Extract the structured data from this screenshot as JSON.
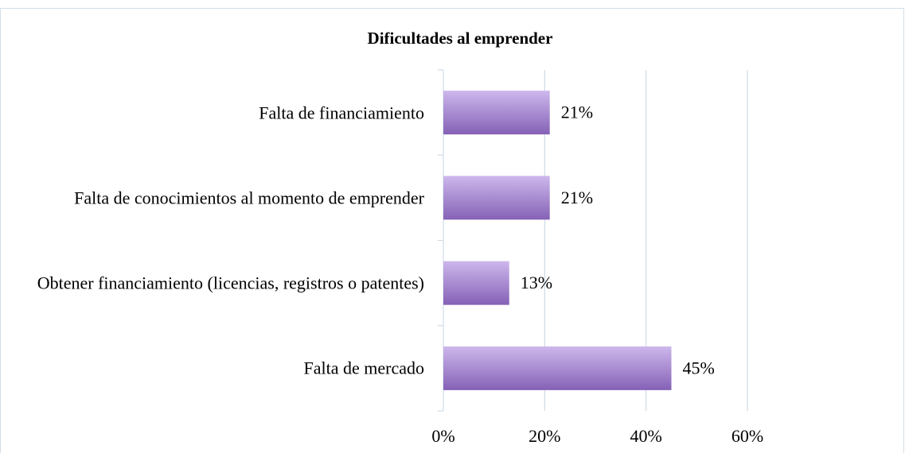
{
  "chart_data": {
    "type": "bar",
    "orientation": "horizontal",
    "title": "Dificultades al emprender",
    "categories": [
      "Falta de financiamiento",
      "Falta de conocimientos al momento de emprender",
      "Obtener financiamiento (licencias, registros o patentes)",
      "Falta de mercado"
    ],
    "values": [
      21,
      21,
      13,
      45
    ],
    "value_labels": [
      "21%",
      "21%",
      "13%",
      "45%"
    ],
    "color": "#9b7cc9",
    "xlim": [
      0,
      60
    ],
    "xticks": [
      {
        "value": 0,
        "label": "0%"
      },
      {
        "value": 20,
        "label": "20%"
      },
      {
        "value": 40,
        "label": "40%"
      },
      {
        "value": 60,
        "label": "60%"
      }
    ],
    "grid": true
  }
}
